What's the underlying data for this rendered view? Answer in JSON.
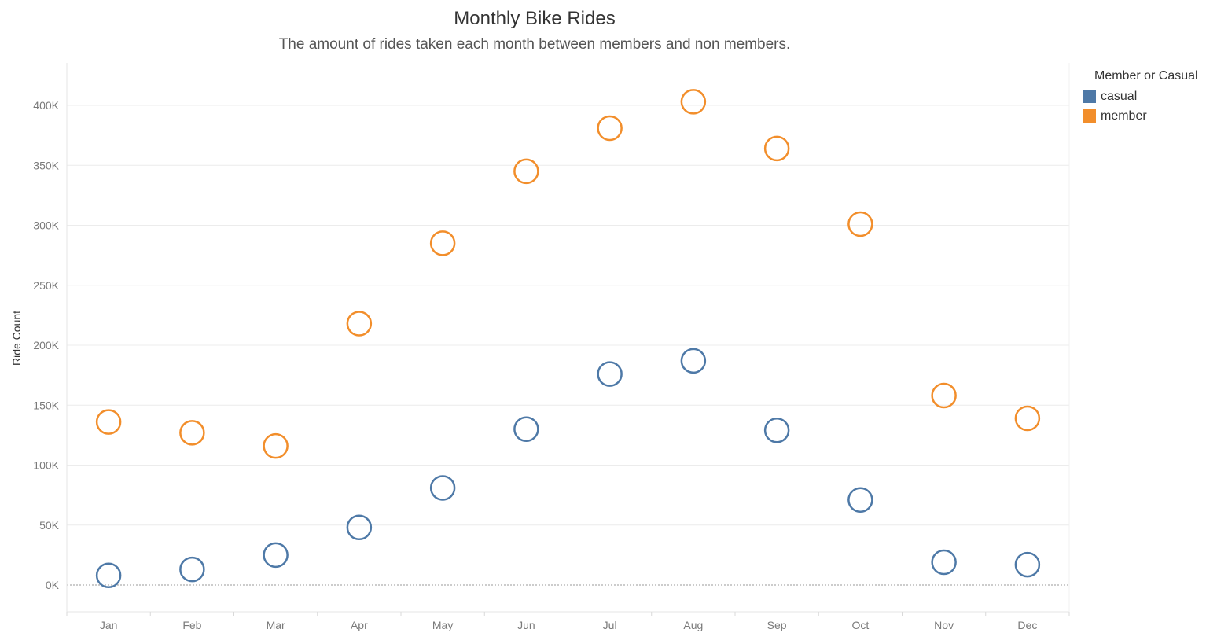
{
  "chart_data": {
    "type": "scatter",
    "title": "Monthly Bike Rides",
    "subtitle": "The amount of rides taken each month between members and non members.",
    "ylabel": "Ride Count",
    "xlabel": "",
    "categories": [
      "Jan",
      "Feb",
      "Mar",
      "Apr",
      "May",
      "Jun",
      "Jul",
      "Aug",
      "Sep",
      "Oct",
      "Nov",
      "Dec"
    ],
    "yticks": [
      0,
      50000,
      100000,
      150000,
      200000,
      250000,
      300000,
      350000,
      400000
    ],
    "ytick_labels": [
      "0K",
      "50K",
      "100K",
      "150K",
      "200K",
      "250K",
      "300K",
      "350K",
      "400K"
    ],
    "ylim": [
      -22000,
      430000
    ],
    "grid": true,
    "legend_title": "Member or Casual",
    "legend_position": "top-right",
    "marker": "hollow-circle",
    "series": [
      {
        "name": "casual",
        "color": "#4e79a7",
        "values": [
          8000,
          13000,
          25000,
          48000,
          81000,
          130000,
          176000,
          187000,
          129000,
          71000,
          19000,
          17000
        ]
      },
      {
        "name": "member",
        "color": "#f28e2b",
        "values": [
          136000,
          127000,
          116000,
          218000,
          285000,
          345000,
          381000,
          403000,
          364000,
          301000,
          158000,
          139000
        ]
      }
    ]
  }
}
